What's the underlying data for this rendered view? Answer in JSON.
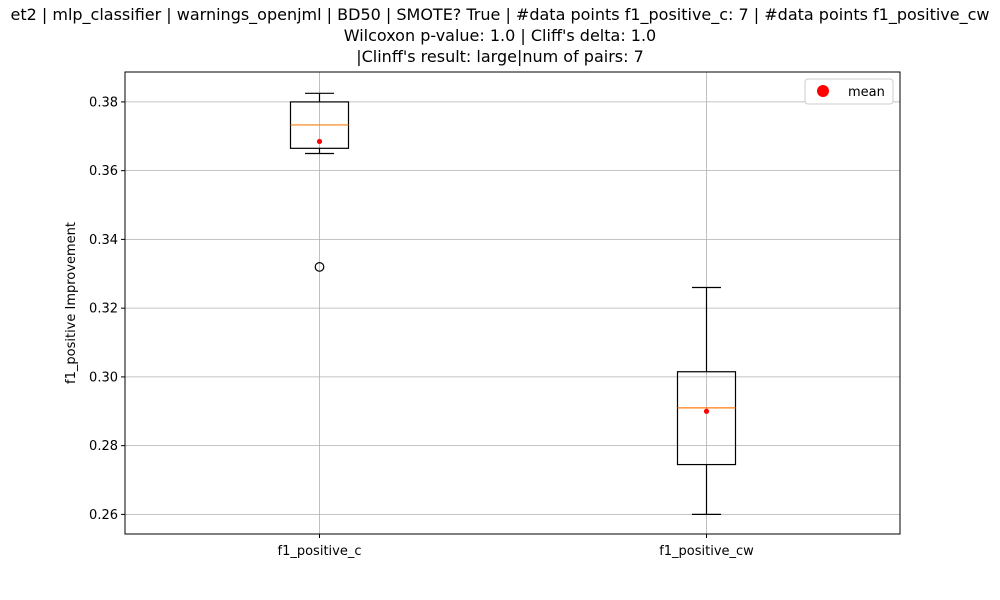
{
  "chart_data": {
    "type": "boxplot",
    "title_lines": [
      "et2 | mlp_classifier | warnings_openjml | BD50 | SMOTE? True | #data points f1_positive_c: 7 | #data points f1_positive_cw",
      "Wilcoxon p-value: 1.0 | Cliff's delta: 1.0",
      "|Clinff's result: large|num of pairs: 7"
    ],
    "ylabel": "f1_positive Improvement",
    "ylim": [
      0.2543,
      0.3887
    ],
    "yticks": [
      0.26,
      0.28,
      0.3,
      0.32,
      0.34,
      0.36,
      0.38
    ],
    "ytick_labels": [
      "0.26",
      "0.28",
      "0.30",
      "0.32",
      "0.34",
      "0.36",
      "0.38"
    ],
    "categories": [
      "f1_positive_c",
      "f1_positive_cw"
    ],
    "boxes": [
      {
        "whisker_low": 0.365,
        "q1": 0.3665,
        "median": 0.3733,
        "q3": 0.38,
        "whisker_high": 0.3825,
        "mean": 0.3685,
        "outliers": [
          0.332
        ]
      },
      {
        "whisker_low": 0.26,
        "q1": 0.2745,
        "median": 0.291,
        "q3": 0.3015,
        "whisker_high": 0.326,
        "mean": 0.29,
        "outliers": []
      }
    ],
    "legend": {
      "label": "mean",
      "position": "top-right"
    },
    "grid": true,
    "colors": {
      "box": "#000000",
      "median": "#ff7f0e",
      "mean": "#ff0000",
      "grid": "#b0b0b0"
    }
  }
}
